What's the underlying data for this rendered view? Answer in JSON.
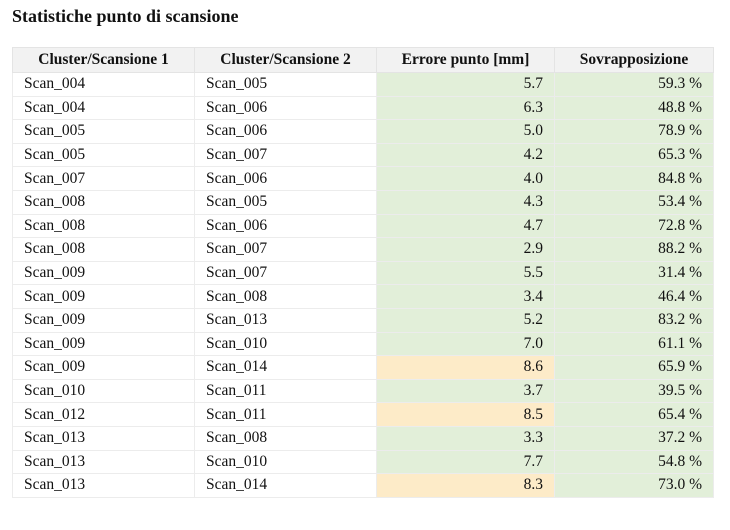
{
  "title": "Statistiche punto di scansione",
  "colors": {
    "header_bg": "#f2f2f2",
    "ok_cell": "#e2efd9",
    "warning_cell": "#fdebc8"
  },
  "table": {
    "headers": [
      "Cluster/Scansione 1",
      "Cluster/Scansione 2",
      "Errore punto [mm]",
      "Sovrapposizione"
    ],
    "rows": [
      {
        "scan1": "Scan_004",
        "scan2": "Scan_005",
        "error": "5.7",
        "overlap": "59.3 %",
        "error_status": "ok",
        "overlap_status": "ok"
      },
      {
        "scan1": "Scan_004",
        "scan2": "Scan_006",
        "error": "6.3",
        "overlap": "48.8 %",
        "error_status": "ok",
        "overlap_status": "ok"
      },
      {
        "scan1": "Scan_005",
        "scan2": "Scan_006",
        "error": "5.0",
        "overlap": "78.9 %",
        "error_status": "ok",
        "overlap_status": "ok"
      },
      {
        "scan1": "Scan_005",
        "scan2": "Scan_007",
        "error": "4.2",
        "overlap": "65.3 %",
        "error_status": "ok",
        "overlap_status": "ok"
      },
      {
        "scan1": "Scan_007",
        "scan2": "Scan_006",
        "error": "4.0",
        "overlap": "84.8 %",
        "error_status": "ok",
        "overlap_status": "ok"
      },
      {
        "scan1": "Scan_008",
        "scan2": "Scan_005",
        "error": "4.3",
        "overlap": "53.4 %",
        "error_status": "ok",
        "overlap_status": "ok"
      },
      {
        "scan1": "Scan_008",
        "scan2": "Scan_006",
        "error": "4.7",
        "overlap": "72.8 %",
        "error_status": "ok",
        "overlap_status": "ok"
      },
      {
        "scan1": "Scan_008",
        "scan2": "Scan_007",
        "error": "2.9",
        "overlap": "88.2 %",
        "error_status": "ok",
        "overlap_status": "ok"
      },
      {
        "scan1": "Scan_009",
        "scan2": "Scan_007",
        "error": "5.5",
        "overlap": "31.4 %",
        "error_status": "ok",
        "overlap_status": "ok"
      },
      {
        "scan1": "Scan_009",
        "scan2": "Scan_008",
        "error": "3.4",
        "overlap": "46.4 %",
        "error_status": "ok",
        "overlap_status": "ok"
      },
      {
        "scan1": "Scan_009",
        "scan2": "Scan_013",
        "error": "5.2",
        "overlap": "83.2 %",
        "error_status": "ok",
        "overlap_status": "ok"
      },
      {
        "scan1": "Scan_009",
        "scan2": "Scan_010",
        "error": "7.0",
        "overlap": "61.1 %",
        "error_status": "ok",
        "overlap_status": "ok"
      },
      {
        "scan1": "Scan_009",
        "scan2": "Scan_014",
        "error": "8.6",
        "overlap": "65.9 %",
        "error_status": "warning",
        "overlap_status": "ok"
      },
      {
        "scan1": "Scan_010",
        "scan2": "Scan_011",
        "error": "3.7",
        "overlap": "39.5 %",
        "error_status": "ok",
        "overlap_status": "ok"
      },
      {
        "scan1": "Scan_012",
        "scan2": "Scan_011",
        "error": "8.5",
        "overlap": "65.4 %",
        "error_status": "warning",
        "overlap_status": "ok"
      },
      {
        "scan1": "Scan_013",
        "scan2": "Scan_008",
        "error": "3.3",
        "overlap": "37.2 %",
        "error_status": "ok",
        "overlap_status": "ok"
      },
      {
        "scan1": "Scan_013",
        "scan2": "Scan_010",
        "error": "7.7",
        "overlap": "54.8 %",
        "error_status": "ok",
        "overlap_status": "ok"
      },
      {
        "scan1": "Scan_013",
        "scan2": "Scan_014",
        "error": "8.3",
        "overlap": "73.0 %",
        "error_status": "warning",
        "overlap_status": "ok"
      }
    ]
  }
}
